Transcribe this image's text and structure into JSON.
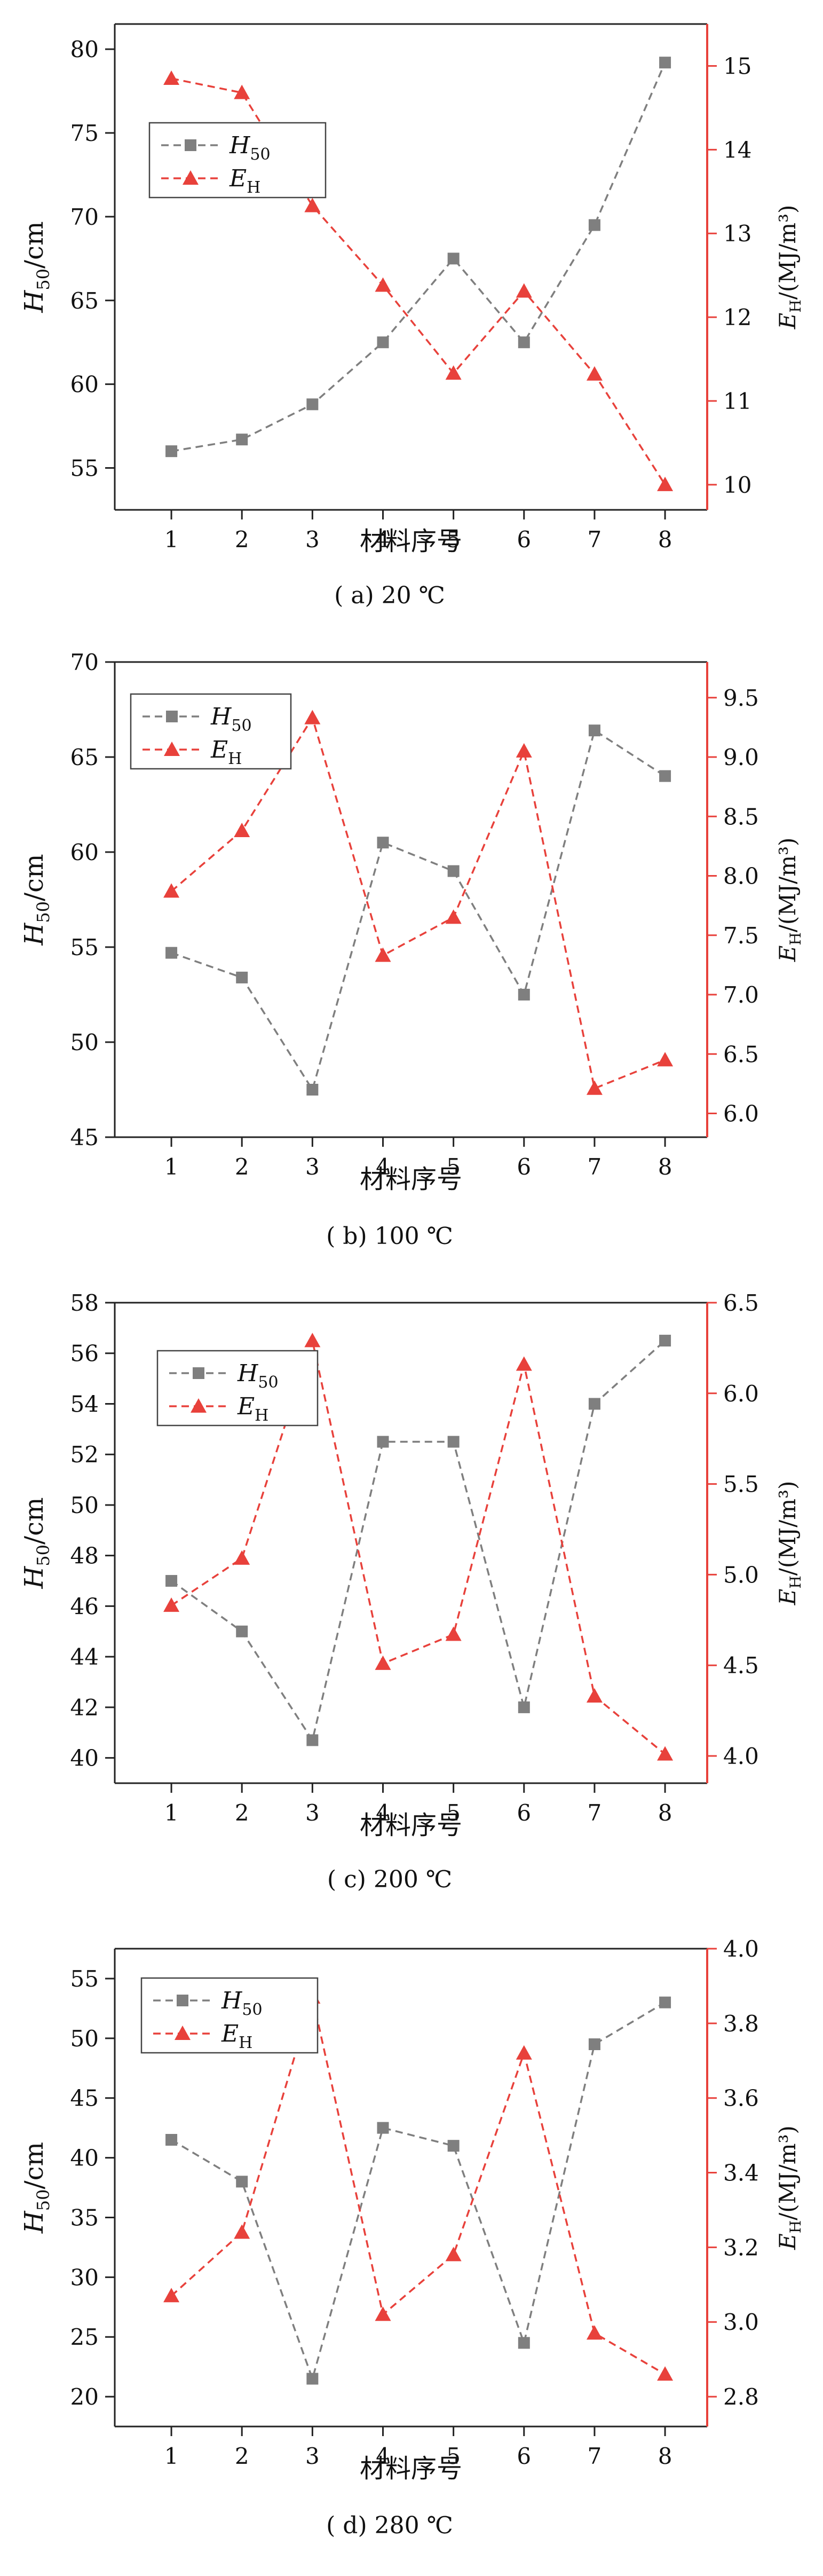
{
  "chart_data": [
    {
      "type": "line",
      "caption": "( a)  20 ℃",
      "x_label": "材料序号",
      "y_left_label": {
        "main": "H",
        "sub": "50",
        "tail": "/cm"
      },
      "y_right_label": {
        "main": "E",
        "sub": "H",
        "tail": "/(MJ/m³)"
      },
      "categories": [
        1,
        2,
        3,
        4,
        5,
        6,
        7,
        8
      ],
      "y_left": {
        "range": [
          52.5,
          81.5
        ],
        "ticks": [
          55,
          60,
          65,
          70,
          75,
          80
        ]
      },
      "y_right": {
        "range": [
          9.7,
          15.5
        ],
        "ticks": [
          10,
          11,
          12,
          13,
          14,
          15
        ]
      },
      "legend_position": "top-left",
      "series": [
        {
          "name": "H50",
          "axis": "left",
          "marker": "square",
          "color": "#7f7f7f",
          "values": [
            56.0,
            56.7,
            58.8,
            62.5,
            67.5,
            62.5,
            69.5,
            79.2
          ]
        },
        {
          "name": "EH",
          "axis": "right",
          "marker": "triangle",
          "color": "#e8413b",
          "values": [
            14.85,
            14.68,
            13.33,
            12.38,
            11.33,
            12.31,
            11.32,
            10.0
          ]
        }
      ]
    },
    {
      "type": "line",
      "caption": "( b)  100 ℃",
      "x_label": "材料序号",
      "y_left_label": {
        "main": "H",
        "sub": "50",
        "tail": "/cm"
      },
      "y_right_label": {
        "main": "E",
        "sub": "H",
        "tail": "/(MJ/m³)"
      },
      "categories": [
        1,
        2,
        3,
        4,
        5,
        6,
        7,
        8
      ],
      "y_left": {
        "range": [
          45,
          70
        ],
        "ticks": [
          45,
          50,
          55,
          60,
          65,
          70
        ]
      },
      "y_right": {
        "range": [
          5.8,
          9.8
        ],
        "ticks": [
          6.0,
          6.5,
          7.0,
          7.5,
          8.0,
          8.5,
          9.0,
          9.5
        ]
      },
      "legend_position": "top-left",
      "series": [
        {
          "name": "H50",
          "axis": "left",
          "marker": "square",
          "color": "#7f7f7f",
          "values": [
            54.7,
            53.4,
            47.5,
            60.5,
            59.0,
            52.5,
            66.4,
            64.0
          ]
        },
        {
          "name": "EH",
          "axis": "right",
          "marker": "triangle",
          "color": "#e8413b",
          "values": [
            7.87,
            8.38,
            9.33,
            7.33,
            7.65,
            9.05,
            6.21,
            6.45
          ]
        }
      ]
    },
    {
      "type": "line",
      "caption": "( c)  200 ℃",
      "x_label": "材料序号",
      "y_left_label": {
        "main": "H",
        "sub": "50",
        "tail": "/cm"
      },
      "y_right_label": {
        "main": "E",
        "sub": "H",
        "tail": "/(MJ/m³)"
      },
      "categories": [
        1,
        2,
        3,
        4,
        5,
        6,
        7,
        8
      ],
      "y_left": {
        "range": [
          39,
          58
        ],
        "ticks": [
          40,
          42,
          44,
          46,
          48,
          50,
          52,
          54,
          56,
          58
        ]
      },
      "y_right": {
        "range": [
          3.85,
          6.5
        ],
        "ticks": [
          4.0,
          4.5,
          5.0,
          5.5,
          6.0,
          6.5
        ]
      },
      "legend_position": "top-left",
      "series": [
        {
          "name": "H50",
          "axis": "left",
          "marker": "square",
          "color": "#7f7f7f",
          "values": [
            47.0,
            45.0,
            40.7,
            52.5,
            52.5,
            42.0,
            54.0,
            56.5
          ]
        },
        {
          "name": "EH",
          "axis": "right",
          "marker": "triangle",
          "color": "#e8413b",
          "values": [
            4.83,
            5.09,
            6.29,
            4.51,
            4.67,
            6.16,
            4.33,
            4.01
          ]
        }
      ]
    },
    {
      "type": "line",
      "caption": "( d)  280 ℃",
      "x_label": "材料序号",
      "y_left_label": {
        "main": "H",
        "sub": "50",
        "tail": "/cm"
      },
      "y_right_label": {
        "main": "E",
        "sub": "H",
        "tail": "/(MJ/m³)"
      },
      "categories": [
        1,
        2,
        3,
        4,
        5,
        6,
        7,
        8
      ],
      "y_left": {
        "range": [
          17.5,
          57.5
        ],
        "ticks": [
          20,
          25,
          30,
          35,
          40,
          45,
          50,
          55
        ]
      },
      "y_right": {
        "range": [
          2.72,
          4.0
        ],
        "ticks": [
          2.8,
          3.0,
          3.2,
          3.4,
          3.6,
          3.8,
          4.0
        ]
      },
      "legend_position": "top-left",
      "series": [
        {
          "name": "H50",
          "axis": "left",
          "marker": "square",
          "color": "#7f7f7f",
          "values": [
            41.5,
            38.0,
            21.5,
            42.5,
            41.0,
            24.5,
            49.5,
            53.0
          ]
        },
        {
          "name": "EH",
          "axis": "right",
          "marker": "triangle",
          "color": "#e8413b",
          "values": [
            3.07,
            3.24,
            3.87,
            3.02,
            3.18,
            3.72,
            2.97,
            2.86
          ]
        }
      ]
    }
  ]
}
